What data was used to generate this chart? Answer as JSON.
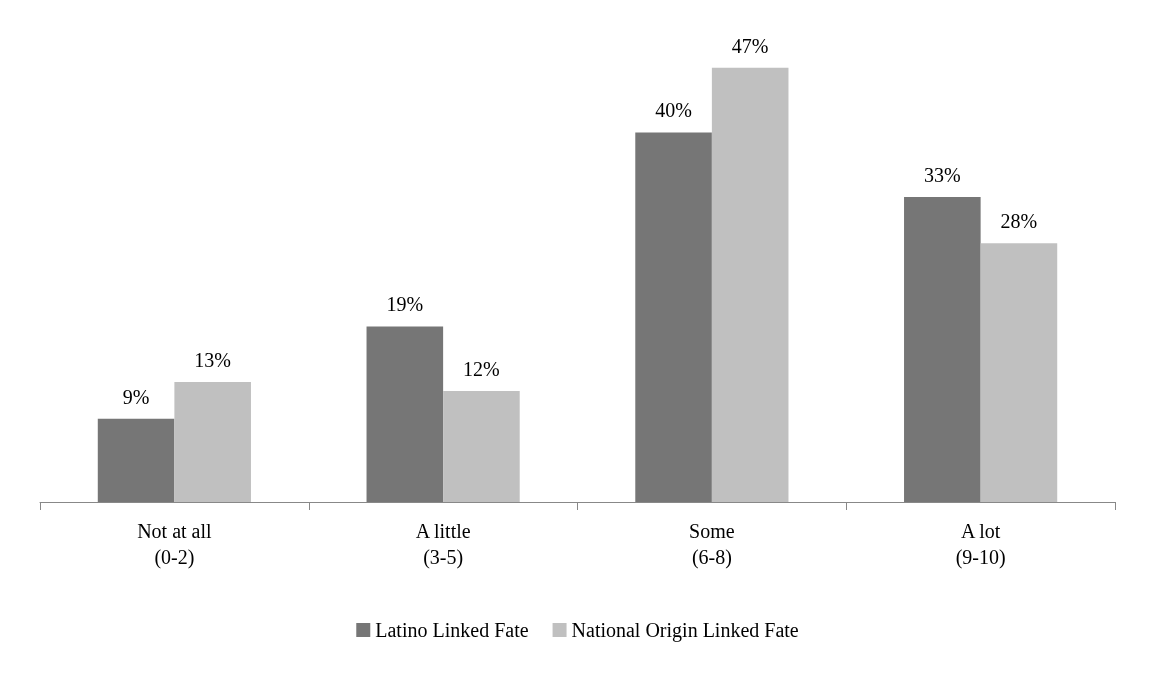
{
  "chart_data": {
    "type": "bar",
    "categories": [
      "Not at all\n(0-2)",
      "A little\n(3-5)",
      "Some\n(6-8)",
      "A lot\n(9-10)"
    ],
    "series": [
      {
        "name": "Latino Linked Fate",
        "color": "#767676",
        "values": [
          9,
          19,
          40,
          33
        ],
        "value_labels": [
          "9%",
          "19%",
          "40%",
          "33%"
        ]
      },
      {
        "name": "National Origin Linked Fate",
        "color": "#c0c0c0",
        "values": [
          13,
          12,
          47,
          28
        ],
        "value_labels": [
          "13%",
          "12%",
          "47%",
          "28%"
        ]
      }
    ],
    "grid": false,
    "legend": "bottom"
  }
}
